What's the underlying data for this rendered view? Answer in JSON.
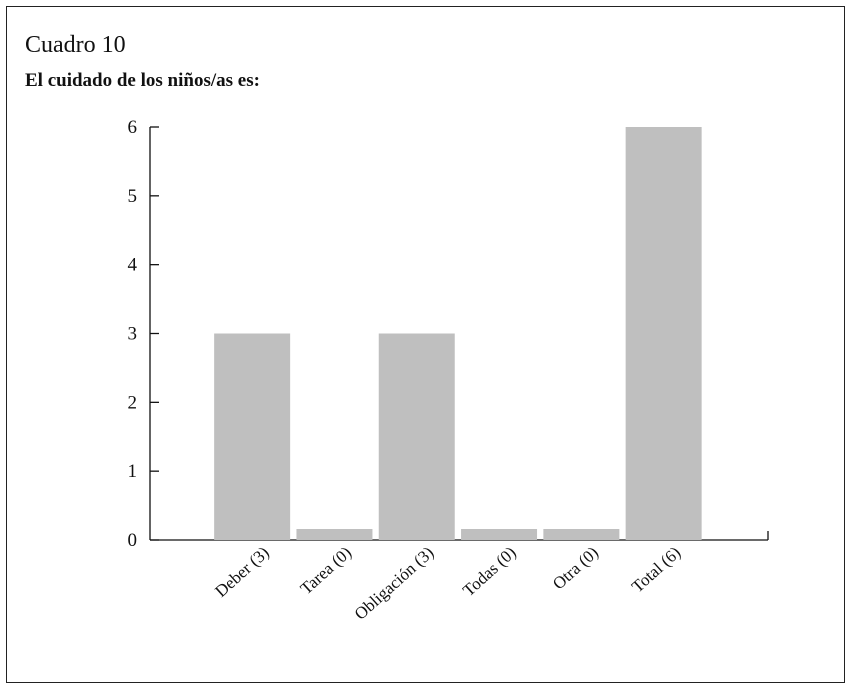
{
  "header": {
    "heading": "Cuadro 10",
    "subtitle": "El cuidado de los niños/as es:"
  },
  "colors": {
    "bar": "#bfbfbf",
    "axis": "#111111"
  },
  "chart_data": {
    "type": "bar",
    "title": "El cuidado de los niños/as es:",
    "categories": [
      "Deber (3)",
      "Tarea (0)",
      "Obligación (3)",
      "Todas (0)",
      "Otra (0)",
      "Total (6)"
    ],
    "values": [
      3,
      0,
      3,
      0,
      0,
      6
    ],
    "ylim": [
      0,
      6
    ],
    "yticks": [
      0,
      1,
      2,
      3,
      4,
      5,
      6
    ],
    "xlabel": "",
    "ylabel": "",
    "grid": false,
    "legend": "none"
  }
}
